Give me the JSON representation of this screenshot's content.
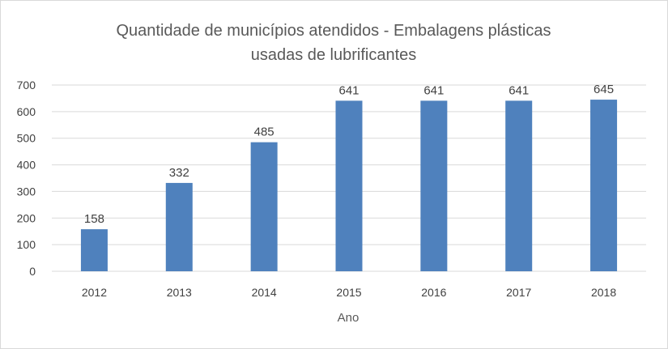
{
  "chart_data": {
    "type": "bar",
    "title_lines": [
      "Quantidade de municípios atendidos - Embalagens plásticas",
      "usadas de lubrificantes"
    ],
    "xlabel": "Ano",
    "ylabel": "",
    "categories": [
      "2012",
      "2013",
      "2014",
      "2015",
      "2016",
      "2017",
      "2018"
    ],
    "values": [
      158,
      332,
      485,
      641,
      641,
      641,
      645
    ],
    "ylim": [
      0,
      700
    ],
    "yticks": [
      0,
      100,
      200,
      300,
      400,
      500,
      600,
      700
    ],
    "grid": true,
    "legend": "none",
    "bar_color": "#4f81bd",
    "grid_color": "#d9d9d9"
  }
}
